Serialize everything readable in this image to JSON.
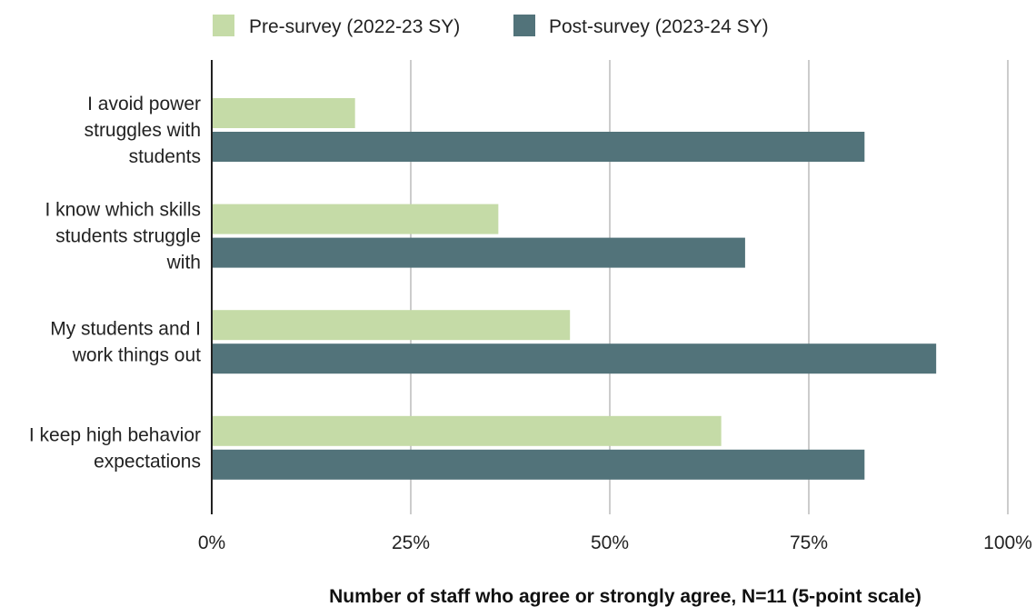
{
  "chart_data": {
    "type": "bar",
    "orientation": "horizontal",
    "title": "",
    "xlabel": "Number of staff who agree or strongly agree, N=11 (5-point scale)",
    "ylabel": "",
    "xlim": [
      0,
      100
    ],
    "x_ticks": [
      {
        "value": 0,
        "label": "0%"
      },
      {
        "value": 25,
        "label": "25%"
      },
      {
        "value": 50,
        "label": "50%"
      },
      {
        "value": 75,
        "label": "75%"
      },
      {
        "value": 100,
        "label": "100%"
      }
    ],
    "categories": [
      "I avoid power struggles with students",
      "I know which skills students struggle with",
      "My students and I work things out",
      "I keep high behavior expectations"
    ],
    "category_label_lines": [
      [
        "I avoid power",
        "struggles with",
        "students"
      ],
      [
        "I know which skills",
        "students struggle",
        "with"
      ],
      [
        "My students and I",
        "work things out"
      ],
      [
        "I keep high behavior",
        "expectations"
      ]
    ],
    "series": [
      {
        "name": "Pre-survey (2022-23 SY)",
        "color": "#c5dba7",
        "values": [
          18,
          36,
          45,
          64
        ]
      },
      {
        "name": "Post-survey (2023-24 SY)",
        "color": "#52737a",
        "values": [
          82,
          67,
          91,
          82
        ]
      }
    ],
    "grid": true,
    "grid_color": "#cccccc",
    "axis_color": "#222222",
    "legend_position": "top-center"
  }
}
